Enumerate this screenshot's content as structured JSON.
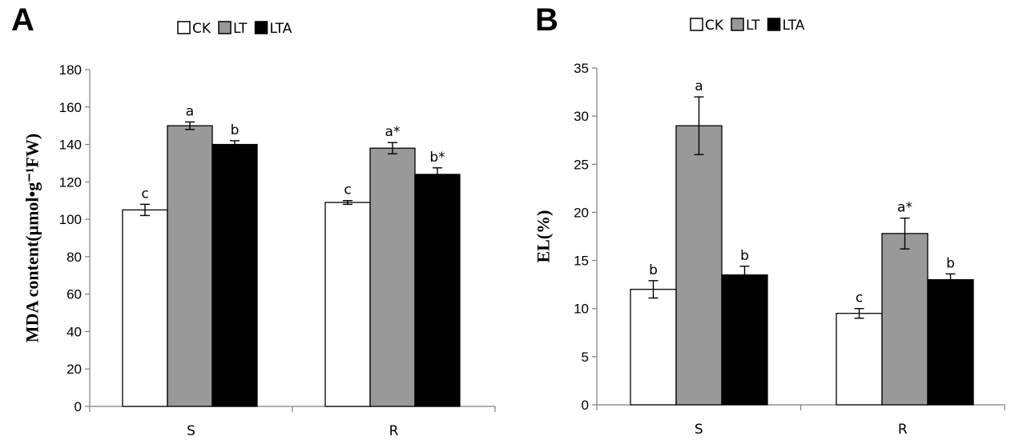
{
  "chart_data": [
    {
      "panel": "A",
      "type": "bar",
      "ylabel": "MDA content(μmol•g⁻¹FW)",
      "xlabel": "",
      "ylim": [
        0,
        180
      ],
      "yticks": [
        0,
        20,
        40,
        60,
        80,
        100,
        120,
        140,
        160,
        180
      ],
      "categories": [
        "S",
        "R"
      ],
      "legend": {
        "position": "top",
        "entries": [
          "CK",
          "LT",
          "LTA"
        ]
      },
      "series": [
        {
          "name": "CK",
          "color": "#ffffff",
          "values": [
            105,
            109
          ],
          "errors": [
            3,
            1
          ],
          "labels": [
            "c",
            "c"
          ]
        },
        {
          "name": "LT",
          "color": "#999999",
          "values": [
            150,
            138
          ],
          "errors": [
            2,
            3
          ],
          "labels": [
            "a",
            "a*"
          ]
        },
        {
          "name": "LTA",
          "color": "#000000",
          "values": [
            140,
            124
          ],
          "errors": [
            2,
            3.5
          ],
          "labels": [
            "b",
            "b*"
          ]
        }
      ]
    },
    {
      "panel": "B",
      "type": "bar",
      "ylabel": "EL(%)",
      "xlabel": "",
      "ylim": [
        0,
        35
      ],
      "yticks": [
        0,
        5,
        10,
        15,
        20,
        25,
        30,
        35
      ],
      "categories": [
        "S",
        "R"
      ],
      "legend": {
        "position": "top",
        "entries": [
          "CK",
          "LT",
          "LTA"
        ]
      },
      "series": [
        {
          "name": "CK",
          "color": "#ffffff",
          "values": [
            12,
            9.5
          ],
          "errors": [
            0.9,
            0.5
          ],
          "labels": [
            "b",
            "c"
          ]
        },
        {
          "name": "LT",
          "color": "#999999",
          "values": [
            29,
            17.8
          ],
          "errors": [
            3,
            1.6
          ],
          "labels": [
            "a",
            "a*"
          ]
        },
        {
          "name": "LTA",
          "color": "#000000",
          "values": [
            13.5,
            13
          ],
          "errors": [
            0.9,
            0.6
          ],
          "labels": [
            "b",
            "b"
          ]
        }
      ]
    }
  ]
}
